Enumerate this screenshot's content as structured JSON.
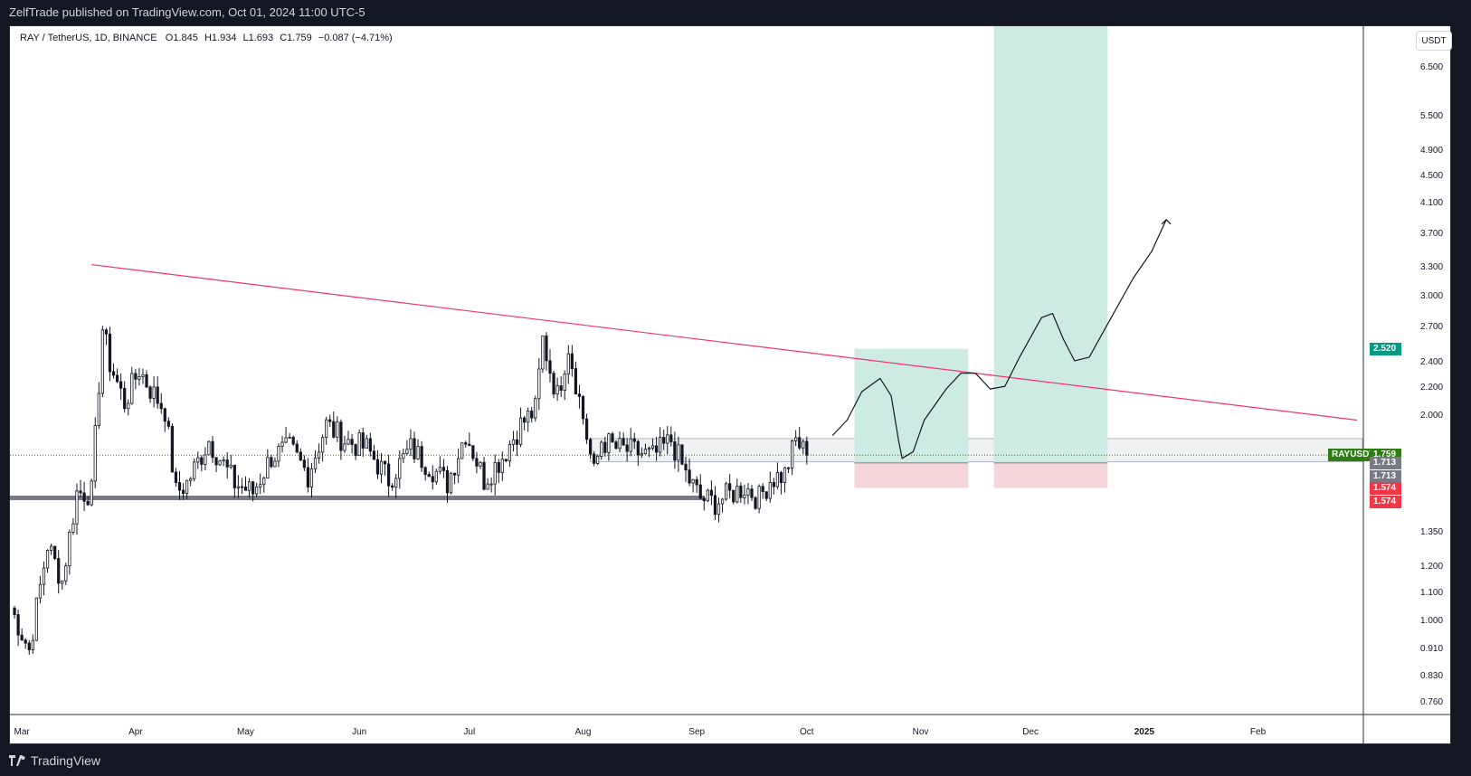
{
  "header": {
    "publisher_text": "ZelfTrade published on TradingView.com, Oct 01, 2024 11:00 UTC-5"
  },
  "legend": {
    "symbol": "RAY / TetherUS, 1D, BINANCE",
    "open_label": "O",
    "open": "1.845",
    "high_label": "H",
    "high": "1.934",
    "low_label": "L",
    "low": "1.693",
    "close_label": "C",
    "close": "1.759",
    "change": "−0.087 (−4.71%)"
  },
  "currency_button": "USDT",
  "footer": {
    "brand": "TradingView"
  },
  "price_labels": {
    "target": {
      "text": "2.520",
      "color": "#089981"
    },
    "symbol_tag": "RAYUSDT",
    "last": {
      "text": "1.759",
      "color": "#2e7d12"
    },
    "entry_1": "1.713",
    "entry_2": "1.713",
    "stop_1": "1.574",
    "stop_2": "1.574"
  },
  "chart_data": {
    "type": "candlestick",
    "scale": "log",
    "y_ticks": [
      "6.500",
      "5.500",
      "4.900",
      "4.500",
      "4.100",
      "3.700",
      "3.300",
      "3.000",
      "2.700",
      "2.400",
      "2.200",
      "2.000",
      "1.350",
      "1.200",
      "1.100",
      "1.000",
      "0.910",
      "0.830",
      "0.760"
    ],
    "y_range": [
      0.75,
      7.5
    ],
    "x_ticks": [
      "Mar",
      "Apr",
      "May",
      "Jun",
      "Jul",
      "Aug",
      "Sep",
      "Oct",
      "Nov",
      "Dec",
      "2025",
      "Feb"
    ],
    "x_range": [
      "2024-02-27",
      "2025-02-28"
    ],
    "last_price": 1.759,
    "ohlc_keypoints": [
      [
        "2024-02-27",
        1.05
      ],
      [
        "2024-03-03",
        0.91
      ],
      [
        "2024-03-08",
        1.3
      ],
      [
        "2024-03-12",
        1.15
      ],
      [
        "2024-03-16",
        1.55
      ],
      [
        "2024-03-20",
        1.55
      ],
      [
        "2024-03-23",
        2.7
      ],
      [
        "2024-03-25",
        2.4
      ],
      [
        "2024-03-29",
        2.1
      ],
      [
        "2024-04-02",
        2.35
      ],
      [
        "2024-04-05",
        2.2
      ],
      [
        "2024-04-09",
        2.05
      ],
      [
        "2024-04-12",
        1.55
      ],
      [
        "2024-04-15",
        1.6
      ],
      [
        "2024-04-21",
        1.85
      ],
      [
        "2024-04-28",
        1.6
      ],
      [
        "2024-05-03",
        1.55
      ],
      [
        "2024-05-08",
        1.75
      ],
      [
        "2024-05-13",
        1.8
      ],
      [
        "2024-05-18",
        1.65
      ],
      [
        "2024-05-23",
        1.95
      ],
      [
        "2024-05-28",
        1.85
      ],
      [
        "2024-06-03",
        1.8
      ],
      [
        "2024-06-09",
        1.62
      ],
      [
        "2024-06-15",
        1.8
      ],
      [
        "2024-06-20",
        1.7
      ],
      [
        "2024-06-25",
        1.6
      ],
      [
        "2024-06-30",
        1.9
      ],
      [
        "2024-07-05",
        1.62
      ],
      [
        "2024-07-10",
        1.75
      ],
      [
        "2024-07-15",
        1.95
      ],
      [
        "2024-07-19",
        2.05
      ],
      [
        "2024-07-21",
        2.6
      ],
      [
        "2024-07-23",
        2.35
      ],
      [
        "2024-07-25",
        2.15
      ],
      [
        "2024-07-28",
        2.55
      ],
      [
        "2024-08-01",
        2.0
      ],
      [
        "2024-08-04",
        1.65
      ],
      [
        "2024-08-06",
        1.85
      ],
      [
        "2024-08-10",
        1.8
      ],
      [
        "2024-08-15",
        1.78
      ],
      [
        "2024-08-20",
        1.75
      ],
      [
        "2024-08-25",
        1.85
      ],
      [
        "2024-08-29",
        1.65
      ],
      [
        "2024-09-02",
        1.52
      ],
      [
        "2024-09-06",
        1.5
      ],
      [
        "2024-09-10",
        1.54
      ],
      [
        "2024-09-14",
        1.58
      ],
      [
        "2024-09-18",
        1.52
      ],
      [
        "2024-09-21",
        1.62
      ],
      [
        "2024-09-25",
        1.65
      ],
      [
        "2024-09-28",
        1.85
      ],
      [
        "2024-10-01",
        1.76
      ]
    ],
    "annotations": {
      "trendline": [
        [
          "2024-03-20",
          3.35
        ],
        [
          "2025-02-28",
          1.98
        ]
      ],
      "support_line": 1.52,
      "range_box": [
        1.72,
        1.86
      ],
      "position_1": {
        "start": "2024-10-14",
        "end": "2024-11-14",
        "entry": 1.713,
        "target": 2.52,
        "stop": 1.574
      },
      "position_2": {
        "start": "2024-11-21",
        "end": "2024-12-22",
        "entry": 1.713,
        "target": 7.5,
        "stop": 1.574
      }
    }
  }
}
